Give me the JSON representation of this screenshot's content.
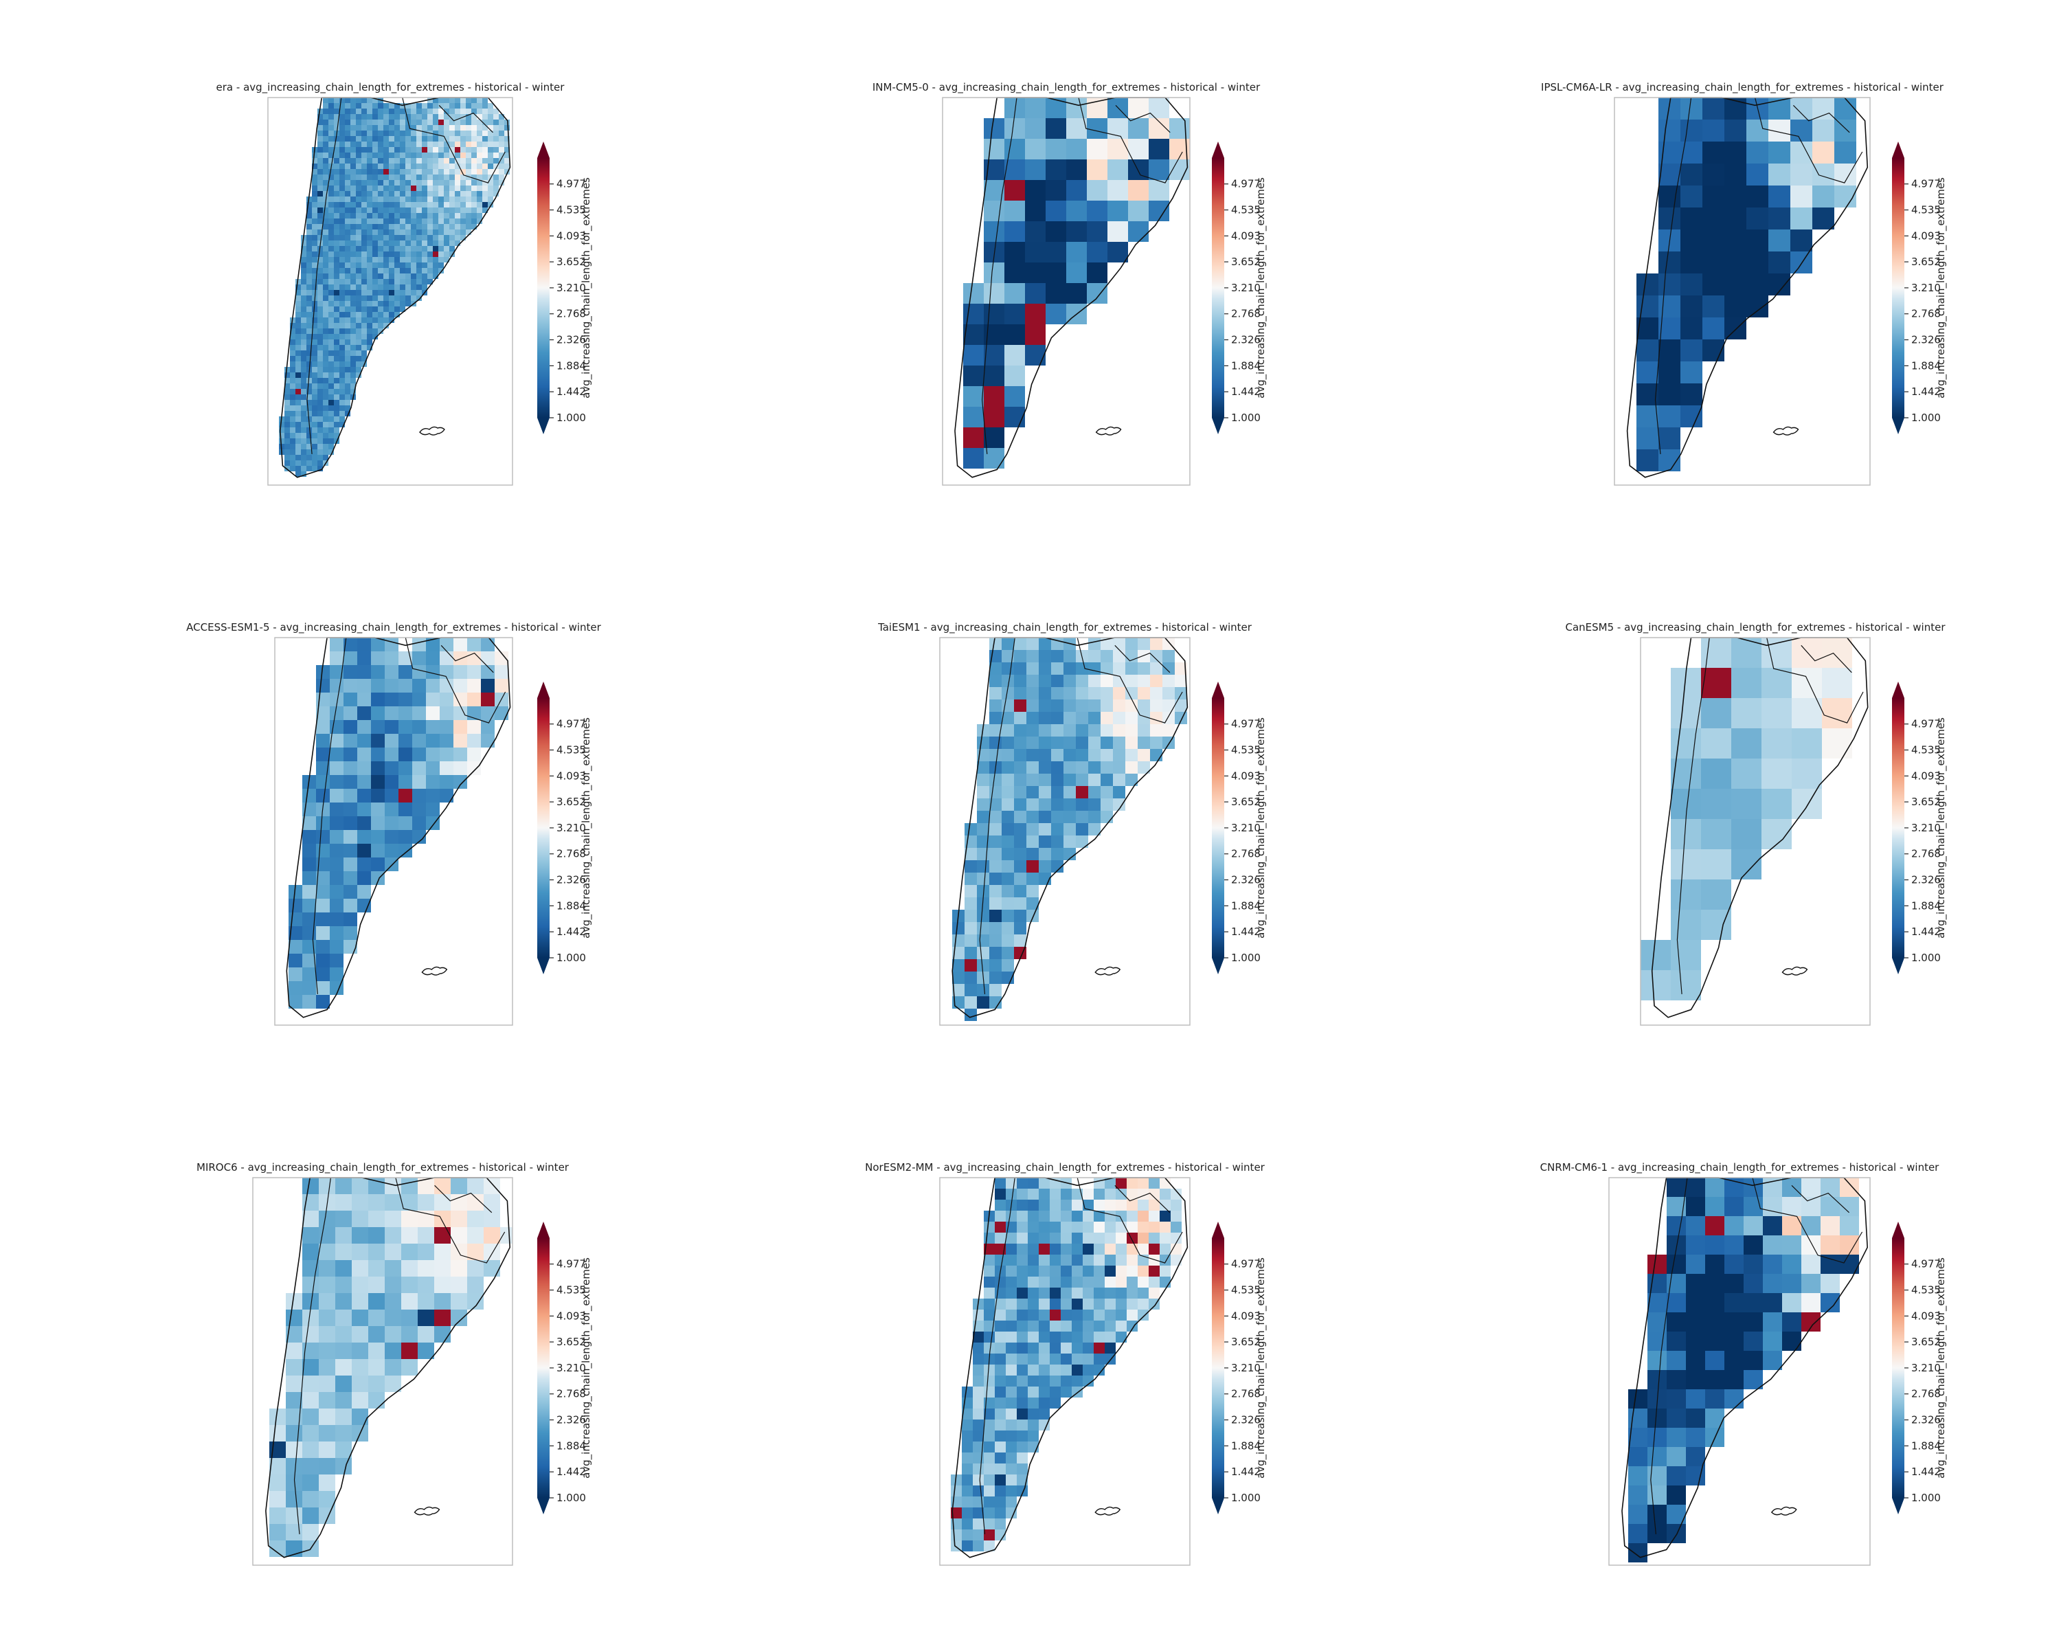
{
  "figure": {
    "colormap": "RdBu_r",
    "colors": {
      "low": "#053061",
      "mid": "#f7f7f7",
      "high": "#67001f"
    },
    "value_range": [
      1.0,
      5.418
    ],
    "colorbar": {
      "label": "avg_increasing_chain_length_for_extremes",
      "ticks": [
        "1.000",
        "1.442",
        "1.884",
        "2.326",
        "2.768",
        "3.210",
        "3.652",
        "4.093",
        "4.535",
        "4.977"
      ],
      "extend": "both"
    },
    "maps": [
      {
        "id": "era",
        "title": "era - avg_increasing_chain_length_for_extremes - historical - winter",
        "pattern": "fine-grain mostly blue with light red patches in the north-east"
      },
      {
        "id": "inm",
        "title": "INM-CM5-0 - avg_increasing_chain_length_for_extremes - historical - winter",
        "pattern": "coarse blocks, dark blue centre-north with dark red spots in the north"
      },
      {
        "id": "ipsl",
        "title": "IPSL-CM6A-LR - avg_increasing_chain_length_for_extremes - historical - winter",
        "pattern": "coarse blocks, mostly dark blue with dark red in the north-east"
      },
      {
        "id": "access",
        "title": "ACCESS-ESM1-5 - avg_increasing_chain_length_for_extremes - historical - winter",
        "pattern": "medium blue with red patches in the north"
      },
      {
        "id": "taiesm",
        "title": "TaiESM1 - avg_increasing_chain_length_for_extremes - historical - winter",
        "pattern": "medium blue with light red in the north-east"
      },
      {
        "id": "canesm",
        "title": "CanESM5 - avg_increasing_chain_length_for_extremes - historical - winter",
        "pattern": "very coarse, light blue with light red in the north-east"
      },
      {
        "id": "miroc",
        "title": "MIROC6 - avg_increasing_chain_length_for_extremes - historical - winter",
        "pattern": "light to medium blue with light red in the north-east"
      },
      {
        "id": "noresm",
        "title": "NorESM2-MM - avg_increasing_chain_length_for_extremes - historical - winter",
        "pattern": "medium blue with red spot in the far north"
      },
      {
        "id": "cnrm",
        "title": "CNRM-CM6-1 - avg_increasing_chain_length_for_extremes - historical - winter",
        "pattern": "mixed dark blue and dark red blocks"
      }
    ]
  }
}
